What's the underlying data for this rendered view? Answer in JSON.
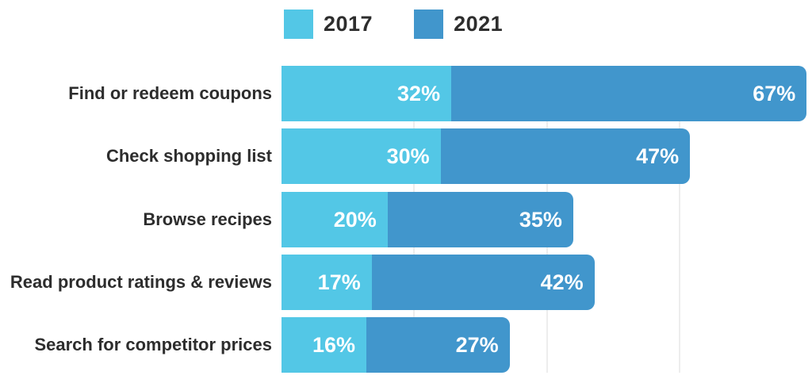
{
  "chart_data": {
    "type": "bar",
    "orientation": "horizontal",
    "stacked": true,
    "title": "",
    "xlabel": "",
    "ylabel": "",
    "xlim": [
      0,
      100
    ],
    "value_suffix": "%",
    "grid": true,
    "gridlines_percent": [
      25,
      50,
      75
    ],
    "legend_position": "top",
    "categories": [
      "Find or redeem coupons",
      "Check shopping list",
      "Browse recipes",
      "Read product ratings & reviews",
      "Search for competitor prices"
    ],
    "series": [
      {
        "name": "2017",
        "color": "#53C7E6",
        "values": [
          32,
          30,
          20,
          17,
          16
        ]
      },
      {
        "name": "2021",
        "color": "#4196CC",
        "values": [
          67,
          47,
          35,
          42,
          27
        ]
      }
    ]
  },
  "legend": {
    "items": [
      {
        "label": "2017",
        "color": "#53C7E6"
      },
      {
        "label": "2021",
        "color": "#4196CC"
      }
    ]
  },
  "colors": {
    "background": "#ffffff",
    "gridline": "#ededed",
    "category_text": "#2d2d2d",
    "value_text": "#ffffff"
  }
}
